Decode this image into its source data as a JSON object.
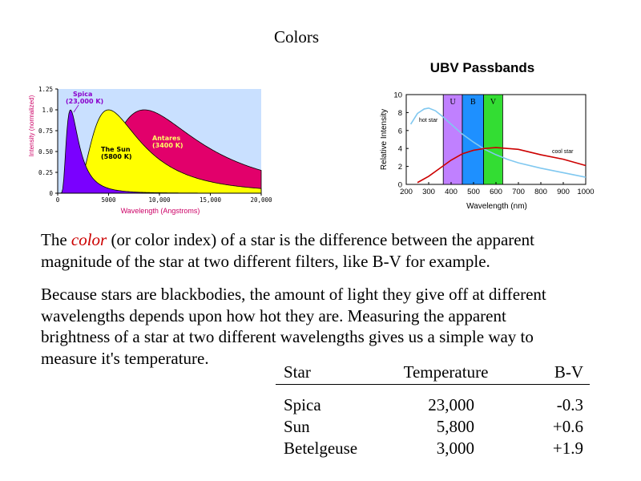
{
  "slide": {
    "title": "Colors"
  },
  "left_chart": {
    "chart_data": {
      "type": "line",
      "title": "",
      "xlabel": "Wavelength (Angstroms)",
      "ylabel": "Intensity (normalized)",
      "xlim": [
        0,
        20000
      ],
      "ylim": [
        0,
        1.25
      ],
      "x_ticks": [
        "0",
        "5000",
        "10,000",
        "15,000",
        "20,000"
      ],
      "y_ticks": [
        "0",
        "0.25",
        "0.50",
        "0.75",
        "1.0",
        "1.25"
      ],
      "x_tick_values": [
        0,
        5000,
        10000,
        15000,
        20000
      ],
      "y_tick_values": [
        0,
        0.25,
        0.5,
        0.75,
        1.0,
        1.25
      ],
      "background": "#c9e0ff",
      "series": [
        {
          "name": "Antares",
          "label_line1": "Antares",
          "label_line2": "(3400 K)",
          "temperature_k": 3400,
          "color": "#e2006b",
          "text_color": "#ffff66"
        },
        {
          "name": "The Sun",
          "label_line1": "The Sun",
          "label_line2": "(5800 K)",
          "temperature_k": 5800,
          "color": "#ffff00",
          "text_color": "#000000"
        },
        {
          "name": "Spica",
          "label_line1": "Spica",
          "label_line2": "(23,000 K)",
          "temperature_k": 23000,
          "color": "#7a00ff",
          "text_color": "#8a00cc"
        }
      ]
    }
  },
  "right_chart": {
    "chart_data": {
      "type": "line",
      "title": "UBV Passbands",
      "xlabel": "Wavelength (nm)",
      "ylabel": "Relative Intensity",
      "xlim": [
        200,
        1000
      ],
      "ylim": [
        0,
        10
      ],
      "x_ticks": [
        "200",
        "300",
        "400",
        "500",
        "600",
        "700",
        "800",
        "900",
        "1000"
      ],
      "y_ticks": [
        "0",
        "2",
        "4",
        "6",
        "8",
        "10"
      ],
      "x_tick_values": [
        200,
        300,
        400,
        500,
        600,
        700,
        800,
        900,
        1000
      ],
      "y_tick_values": [
        0,
        2,
        4,
        6,
        8,
        10
      ],
      "bands": [
        {
          "label": "U",
          "x_start": 365,
          "x_end": 450,
          "color": "#c080ff"
        },
        {
          "label": "B",
          "x_start": 450,
          "x_end": 545,
          "color": "#1e90ff"
        },
        {
          "label": "V",
          "x_start": 545,
          "x_end": 630,
          "color": "#33dd33"
        }
      ],
      "series": [
        {
          "name": "hot star",
          "color": "#80c8f0",
          "x": [
            220,
            250,
            280,
            300,
            330,
            360,
            400,
            450,
            500,
            550,
            600,
            650,
            700,
            800,
            900,
            1000
          ],
          "y": [
            6.7,
            7.9,
            8.4,
            8.5,
            8.2,
            7.6,
            6.7,
            5.6,
            4.7,
            3.9,
            3.3,
            2.8,
            2.4,
            1.8,
            1.3,
            0.8
          ]
        },
        {
          "name": "cool star",
          "color": "#cc0000",
          "x": [
            250,
            300,
            350,
            400,
            450,
            500,
            550,
            600,
            650,
            700,
            750,
            800,
            900,
            1000
          ],
          "y": [
            0.2,
            0.9,
            1.8,
            2.7,
            3.4,
            3.8,
            4.0,
            4.1,
            4.0,
            3.9,
            3.6,
            3.3,
            2.8,
            2.1
          ]
        }
      ]
    }
  },
  "paragraph1": {
    "part1": "The ",
    "em": "color",
    "part2": " (or color index) of a star is the difference between the apparent",
    "line2": "magnitude of the star at two different filters, like B-V for example."
  },
  "paragraph2": {
    "line1": "Because stars are blackbodies, the amount of light they give off at different",
    "line2": "wavelengths depends upon how hot they are.  Measuring the apparent",
    "line3": "brightness of a star at two different wavelengths gives us a simple way to",
    "line4": "measure it's temperature."
  },
  "table": {
    "headers": {
      "star": "Star",
      "temperature": "Temperature",
      "bv": "B-V"
    },
    "rows": [
      {
        "star": "Spica",
        "temperature": "23,000",
        "bv": "-0.3"
      },
      {
        "star": "Sun",
        "temperature": "5,800",
        "bv": "+0.6"
      },
      {
        "star": "Betelgeuse",
        "temperature": "3,000",
        "bv": "+1.9"
      }
    ]
  }
}
